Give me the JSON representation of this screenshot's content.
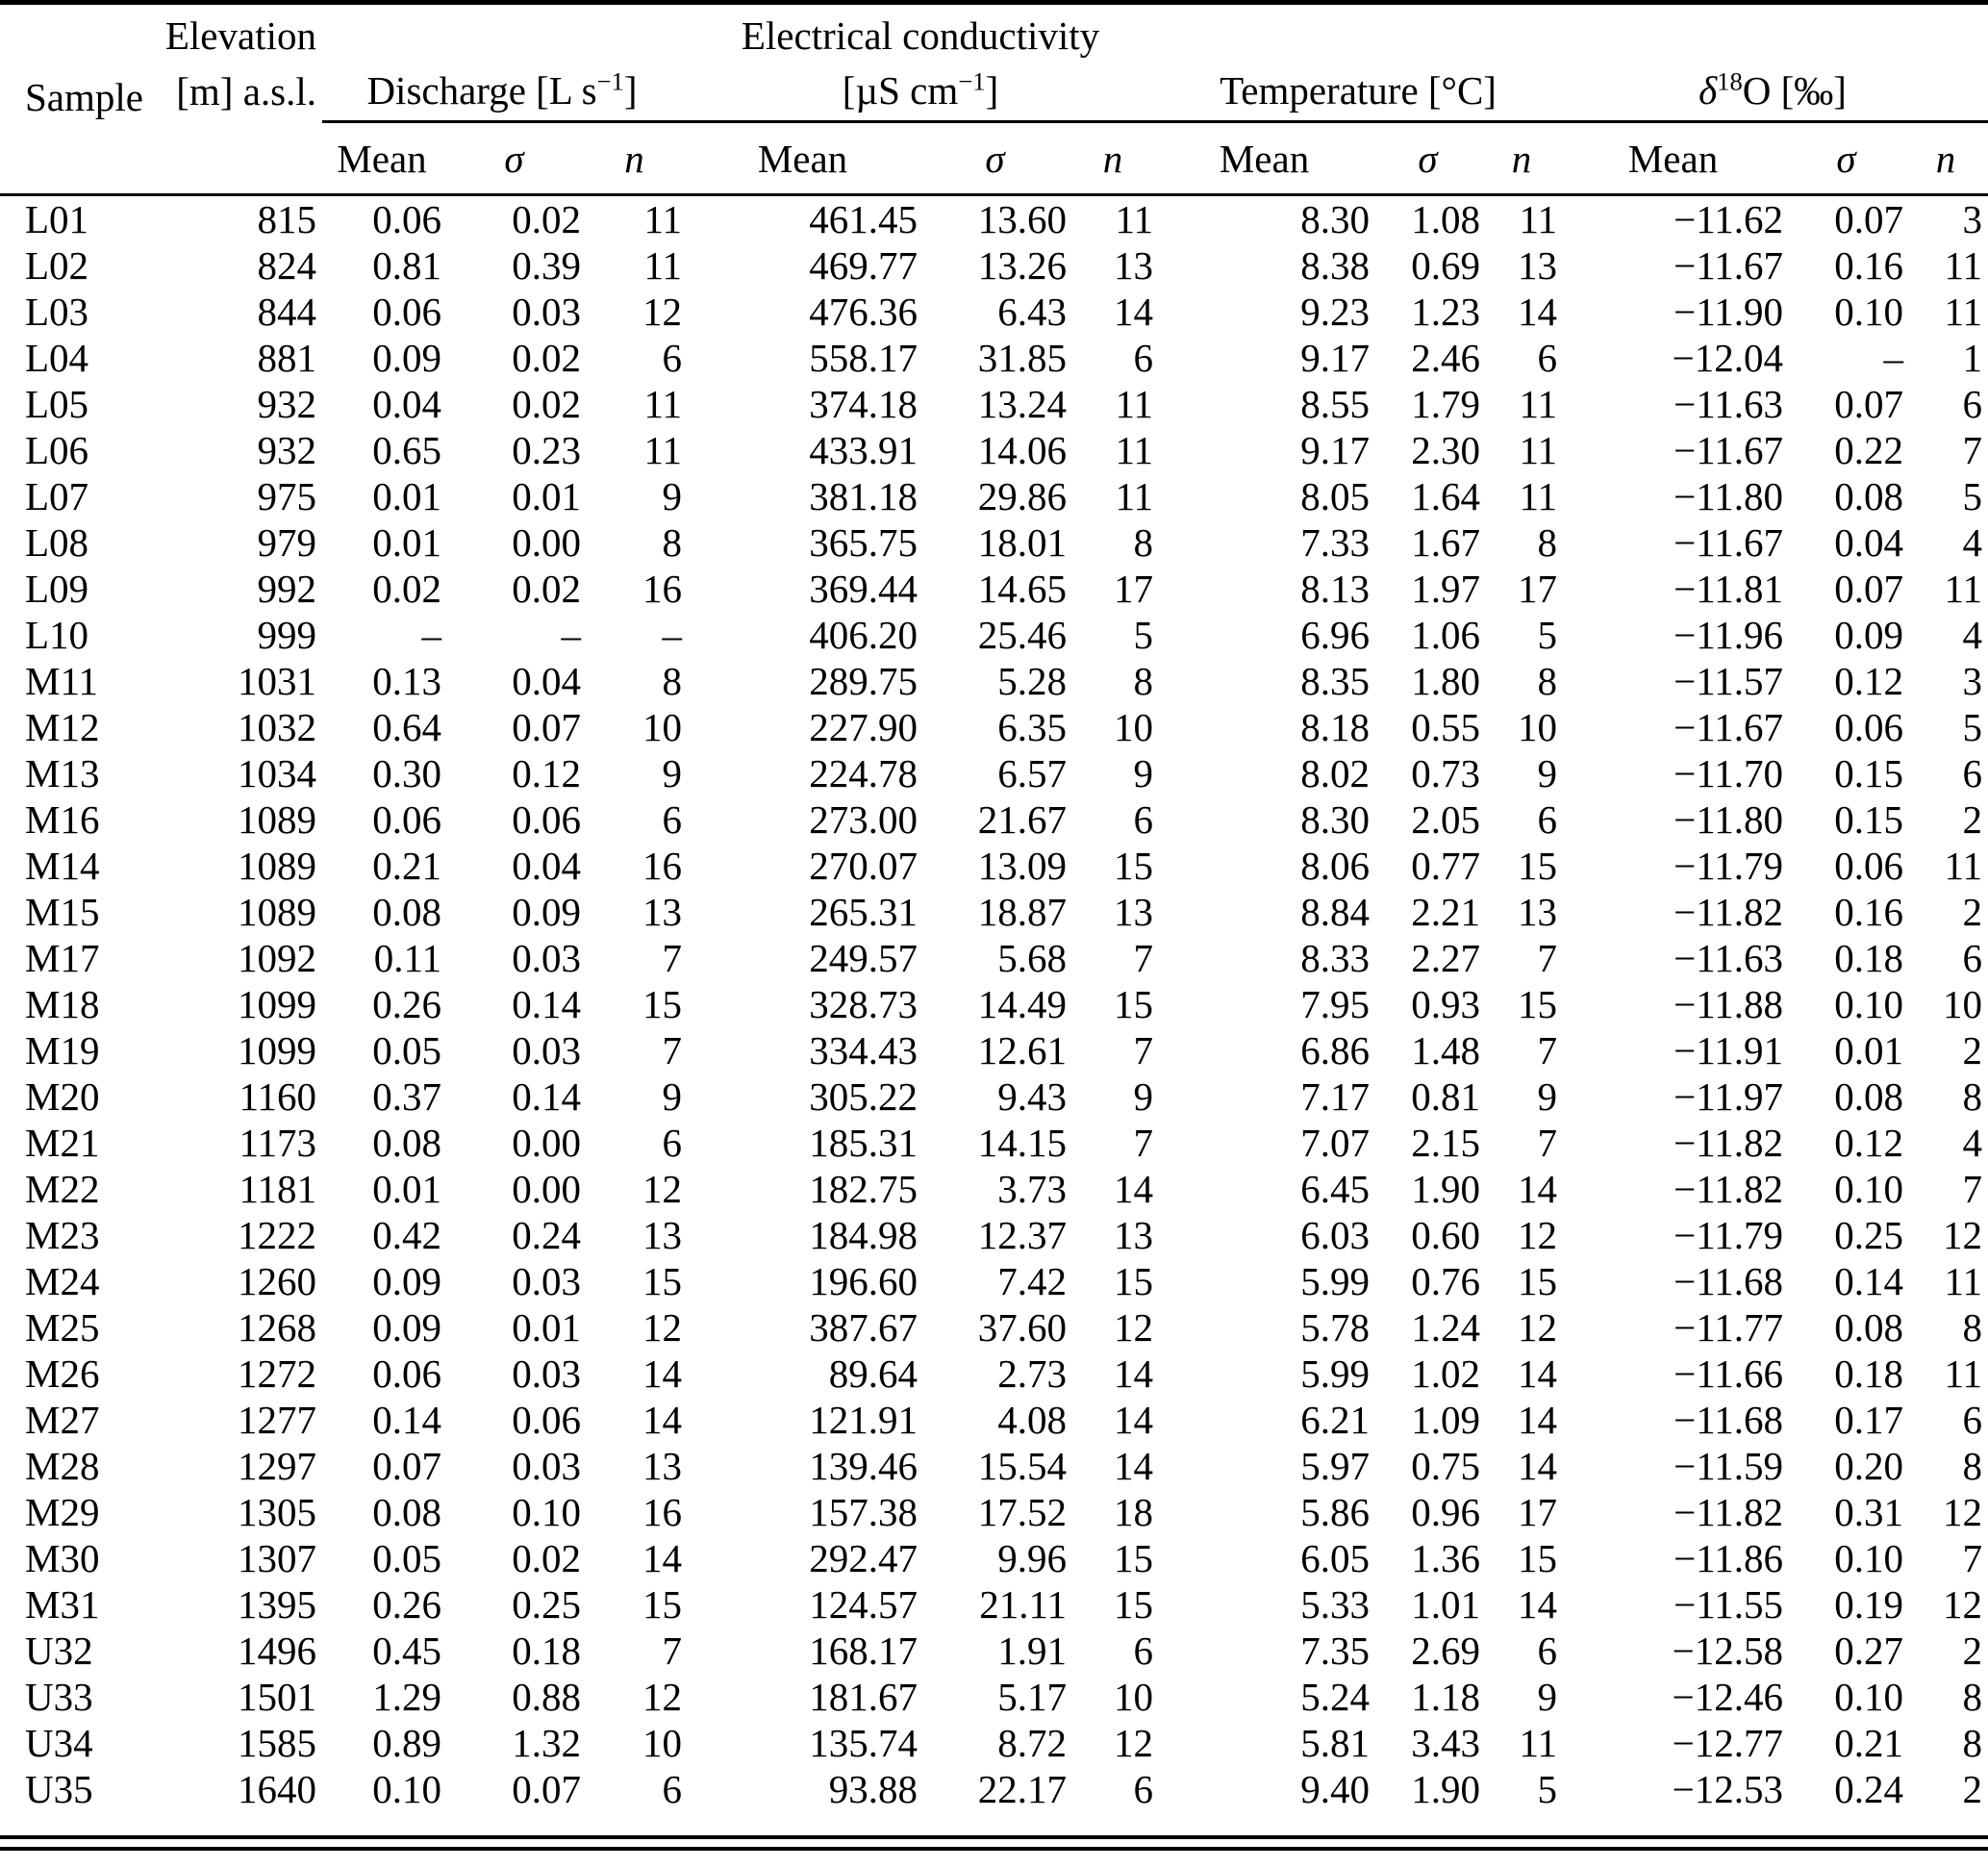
{
  "table": {
    "header": {
      "sample": "Sample",
      "elevation_line1": "Elevation",
      "elevation_line2": "[m] a.s.l.",
      "discharge_pre": "Discharge [L s",
      "discharge_sup": "−1",
      "discharge_post": "]",
      "ec_line1": "Electrical conductivity",
      "ec_line2_pre": "[µS cm",
      "ec_line2_sup": "−1",
      "ec_line2_post": "]",
      "temperature": "Temperature [°C]",
      "d18o_pre": "δ",
      "d18o_sup": "18",
      "d18o_post": "O [‰]",
      "subcols": {
        "mean": "Mean",
        "sigma": "σ",
        "n": "n"
      }
    },
    "col_keys": [
      "sample",
      "elevation",
      "discharge_mean",
      "discharge_sigma",
      "discharge_n",
      "ec_mean",
      "ec_sigma",
      "ec_n",
      "temp_mean",
      "temp_sigma",
      "temp_n",
      "d18o_mean",
      "d18o_sigma",
      "d18o_n"
    ],
    "rows": [
      [
        "L01",
        "815",
        "0.06",
        "0.02",
        "11",
        "461.45",
        "13.60",
        "11",
        "8.30",
        "1.08",
        "11",
        "−11.62",
        "0.07",
        "3"
      ],
      [
        "L02",
        "824",
        "0.81",
        "0.39",
        "11",
        "469.77",
        "13.26",
        "13",
        "8.38",
        "0.69",
        "13",
        "−11.67",
        "0.16",
        "11"
      ],
      [
        "L03",
        "844",
        "0.06",
        "0.03",
        "12",
        "476.36",
        "6.43",
        "14",
        "9.23",
        "1.23",
        "14",
        "−11.90",
        "0.10",
        "11"
      ],
      [
        "L04",
        "881",
        "0.09",
        "0.02",
        "6",
        "558.17",
        "31.85",
        "6",
        "9.17",
        "2.46",
        "6",
        "−12.04",
        "–",
        "1"
      ],
      [
        "L05",
        "932",
        "0.04",
        "0.02",
        "11",
        "374.18",
        "13.24",
        "11",
        "8.55",
        "1.79",
        "11",
        "−11.63",
        "0.07",
        "6"
      ],
      [
        "L06",
        "932",
        "0.65",
        "0.23",
        "11",
        "433.91",
        "14.06",
        "11",
        "9.17",
        "2.30",
        "11",
        "−11.67",
        "0.22",
        "7"
      ],
      [
        "L07",
        "975",
        "0.01",
        "0.01",
        "9",
        "381.18",
        "29.86",
        "11",
        "8.05",
        "1.64",
        "11",
        "−11.80",
        "0.08",
        "5"
      ],
      [
        "L08",
        "979",
        "0.01",
        "0.00",
        "8",
        "365.75",
        "18.01",
        "8",
        "7.33",
        "1.67",
        "8",
        "−11.67",
        "0.04",
        "4"
      ],
      [
        "L09",
        "992",
        "0.02",
        "0.02",
        "16",
        "369.44",
        "14.65",
        "17",
        "8.13",
        "1.97",
        "17",
        "−11.81",
        "0.07",
        "11"
      ],
      [
        "L10",
        "999",
        "–",
        "–",
        "–",
        "406.20",
        "25.46",
        "5",
        "6.96",
        "1.06",
        "5",
        "−11.96",
        "0.09",
        "4"
      ],
      [
        "M11",
        "1031",
        "0.13",
        "0.04",
        "8",
        "289.75",
        "5.28",
        "8",
        "8.35",
        "1.80",
        "8",
        "−11.57",
        "0.12",
        "3"
      ],
      [
        "M12",
        "1032",
        "0.64",
        "0.07",
        "10",
        "227.90",
        "6.35",
        "10",
        "8.18",
        "0.55",
        "10",
        "−11.67",
        "0.06",
        "5"
      ],
      [
        "M13",
        "1034",
        "0.30",
        "0.12",
        "9",
        "224.78",
        "6.57",
        "9",
        "8.02",
        "0.73",
        "9",
        "−11.70",
        "0.15",
        "6"
      ],
      [
        "M16",
        "1089",
        "0.06",
        "0.06",
        "6",
        "273.00",
        "21.67",
        "6",
        "8.30",
        "2.05",
        "6",
        "−11.80",
        "0.15",
        "2"
      ],
      [
        "M14",
        "1089",
        "0.21",
        "0.04",
        "16",
        "270.07",
        "13.09",
        "15",
        "8.06",
        "0.77",
        "15",
        "−11.79",
        "0.06",
        "11"
      ],
      [
        "M15",
        "1089",
        "0.08",
        "0.09",
        "13",
        "265.31",
        "18.87",
        "13",
        "8.84",
        "2.21",
        "13",
        "−11.82",
        "0.16",
        "2"
      ],
      [
        "M17",
        "1092",
        "0.11",
        "0.03",
        "7",
        "249.57",
        "5.68",
        "7",
        "8.33",
        "2.27",
        "7",
        "−11.63",
        "0.18",
        "6"
      ],
      [
        "M18",
        "1099",
        "0.26",
        "0.14",
        "15",
        "328.73",
        "14.49",
        "15",
        "7.95",
        "0.93",
        "15",
        "−11.88",
        "0.10",
        "10"
      ],
      [
        "M19",
        "1099",
        "0.05",
        "0.03",
        "7",
        "334.43",
        "12.61",
        "7",
        "6.86",
        "1.48",
        "7",
        "−11.91",
        "0.01",
        "2"
      ],
      [
        "M20",
        "1160",
        "0.37",
        "0.14",
        "9",
        "305.22",
        "9.43",
        "9",
        "7.17",
        "0.81",
        "9",
        "−11.97",
        "0.08",
        "8"
      ],
      [
        "M21",
        "1173",
        "0.08",
        "0.00",
        "6",
        "185.31",
        "14.15",
        "7",
        "7.07",
        "2.15",
        "7",
        "−11.82",
        "0.12",
        "4"
      ],
      [
        "M22",
        "1181",
        "0.01",
        "0.00",
        "12",
        "182.75",
        "3.73",
        "14",
        "6.45",
        "1.90",
        "14",
        "−11.82",
        "0.10",
        "7"
      ],
      [
        "M23",
        "1222",
        "0.42",
        "0.24",
        "13",
        "184.98",
        "12.37",
        "13",
        "6.03",
        "0.60",
        "12",
        "−11.79",
        "0.25",
        "12"
      ],
      [
        "M24",
        "1260",
        "0.09",
        "0.03",
        "15",
        "196.60",
        "7.42",
        "15",
        "5.99",
        "0.76",
        "15",
        "−11.68",
        "0.14",
        "11"
      ],
      [
        "M25",
        "1268",
        "0.09",
        "0.01",
        "12",
        "387.67",
        "37.60",
        "12",
        "5.78",
        "1.24",
        "12",
        "−11.77",
        "0.08",
        "8"
      ],
      [
        "M26",
        "1272",
        "0.06",
        "0.03",
        "14",
        "89.64",
        "2.73",
        "14",
        "5.99",
        "1.02",
        "14",
        "−11.66",
        "0.18",
        "11"
      ],
      [
        "M27",
        "1277",
        "0.14",
        "0.06",
        "14",
        "121.91",
        "4.08",
        "14",
        "6.21",
        "1.09",
        "14",
        "−11.68",
        "0.17",
        "6"
      ],
      [
        "M28",
        "1297",
        "0.07",
        "0.03",
        "13",
        "139.46",
        "15.54",
        "14",
        "5.97",
        "0.75",
        "14",
        "−11.59",
        "0.20",
        "8"
      ],
      [
        "M29",
        "1305",
        "0.08",
        "0.10",
        "16",
        "157.38",
        "17.52",
        "18",
        "5.86",
        "0.96",
        "17",
        "−11.82",
        "0.31",
        "12"
      ],
      [
        "M30",
        "1307",
        "0.05",
        "0.02",
        "14",
        "292.47",
        "9.96",
        "15",
        "6.05",
        "1.36",
        "15",
        "−11.86",
        "0.10",
        "7"
      ],
      [
        "M31",
        "1395",
        "0.26",
        "0.25",
        "15",
        "124.57",
        "21.11",
        "15",
        "5.33",
        "1.01",
        "14",
        "−11.55",
        "0.19",
        "12"
      ],
      [
        "U32",
        "1496",
        "0.45",
        "0.18",
        "7",
        "168.17",
        "1.91",
        "6",
        "7.35",
        "2.69",
        "6",
        "−12.58",
        "0.27",
        "2"
      ],
      [
        "U33",
        "1501",
        "1.29",
        "0.88",
        "12",
        "181.67",
        "5.17",
        "10",
        "5.24",
        "1.18",
        "9",
        "−12.46",
        "0.10",
        "8"
      ],
      [
        "U34",
        "1585",
        "0.89",
        "1.32",
        "10",
        "135.74",
        "8.72",
        "12",
        "5.81",
        "3.43",
        "11",
        "−12.77",
        "0.21",
        "8"
      ],
      [
        "U35",
        "1640",
        "0.10",
        "0.07",
        "6",
        "93.88",
        "22.17",
        "6",
        "9.40",
        "1.90",
        "5",
        "−12.53",
        "0.24",
        "2"
      ]
    ]
  }
}
